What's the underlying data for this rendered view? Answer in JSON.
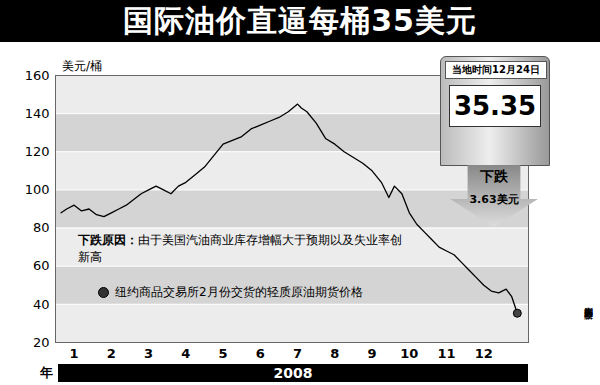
{
  "chart_data": {
    "type": "line",
    "title": "国际油价直逼每桶35美元",
    "y_label": "美元/桶",
    "x_label": "年",
    "x_group_label": "2008",
    "reason_label": "下跌原因：",
    "reason": "由于美国汽油商业库存增幅大于预期以及失业率创新高",
    "callout_date": "当地时间12月24日",
    "callout_price": 35.35,
    "callout_change_label": "下跌",
    "callout_change": 3.63,
    "callout_change_unit": "美元",
    "credit": "周大庆编制 新华社发",
    "x": [
      0.65,
      0.8,
      1.0,
      1.2,
      1.4,
      1.6,
      1.8,
      2.0,
      2.2,
      2.4,
      2.6,
      2.8,
      3.0,
      3.2,
      3.4,
      3.6,
      3.8,
      4.0,
      4.25,
      4.5,
      4.75,
      5.0,
      5.25,
      5.5,
      5.75,
      6.0,
      6.25,
      6.5,
      6.75,
      7.0,
      7.1,
      7.25,
      7.5,
      7.75,
      8.0,
      8.25,
      8.5,
      8.75,
      9.0,
      9.25,
      9.45,
      9.6,
      9.8,
      10.0,
      10.2,
      10.4,
      10.6,
      10.8,
      11.0,
      11.2,
      11.4,
      11.6,
      11.8,
      12.0,
      12.2,
      12.4,
      12.6,
      12.75,
      12.9
    ],
    "series": [
      {
        "name": "纽约商品交易所2月份交货的轻质原油期货价格",
        "color": "#000000",
        "values": [
          88,
          90,
          92,
          89,
          90,
          87,
          86,
          88,
          90,
          92,
          95,
          98,
          100,
          102,
          100,
          98,
          102,
          104,
          108,
          112,
          118,
          124,
          126,
          128,
          132,
          134,
          136,
          138,
          141,
          145,
          143,
          141,
          135,
          127,
          124,
          120,
          117,
          114,
          110,
          104,
          96,
          102,
          98,
          88,
          82,
          78,
          74,
          70,
          68,
          66,
          62,
          58,
          54,
          50,
          47,
          46,
          48,
          44,
          35.35
        ]
      }
    ],
    "xlim": [
      0.5,
      13.2
    ],
    "xticks": [
      1,
      2,
      3,
      4,
      5,
      6,
      7,
      8,
      9,
      10,
      11,
      12
    ],
    "ylim": [
      20,
      160
    ],
    "yticks": [
      20,
      40,
      60,
      80,
      100,
      120,
      140,
      160
    ],
    "grid": true
  }
}
